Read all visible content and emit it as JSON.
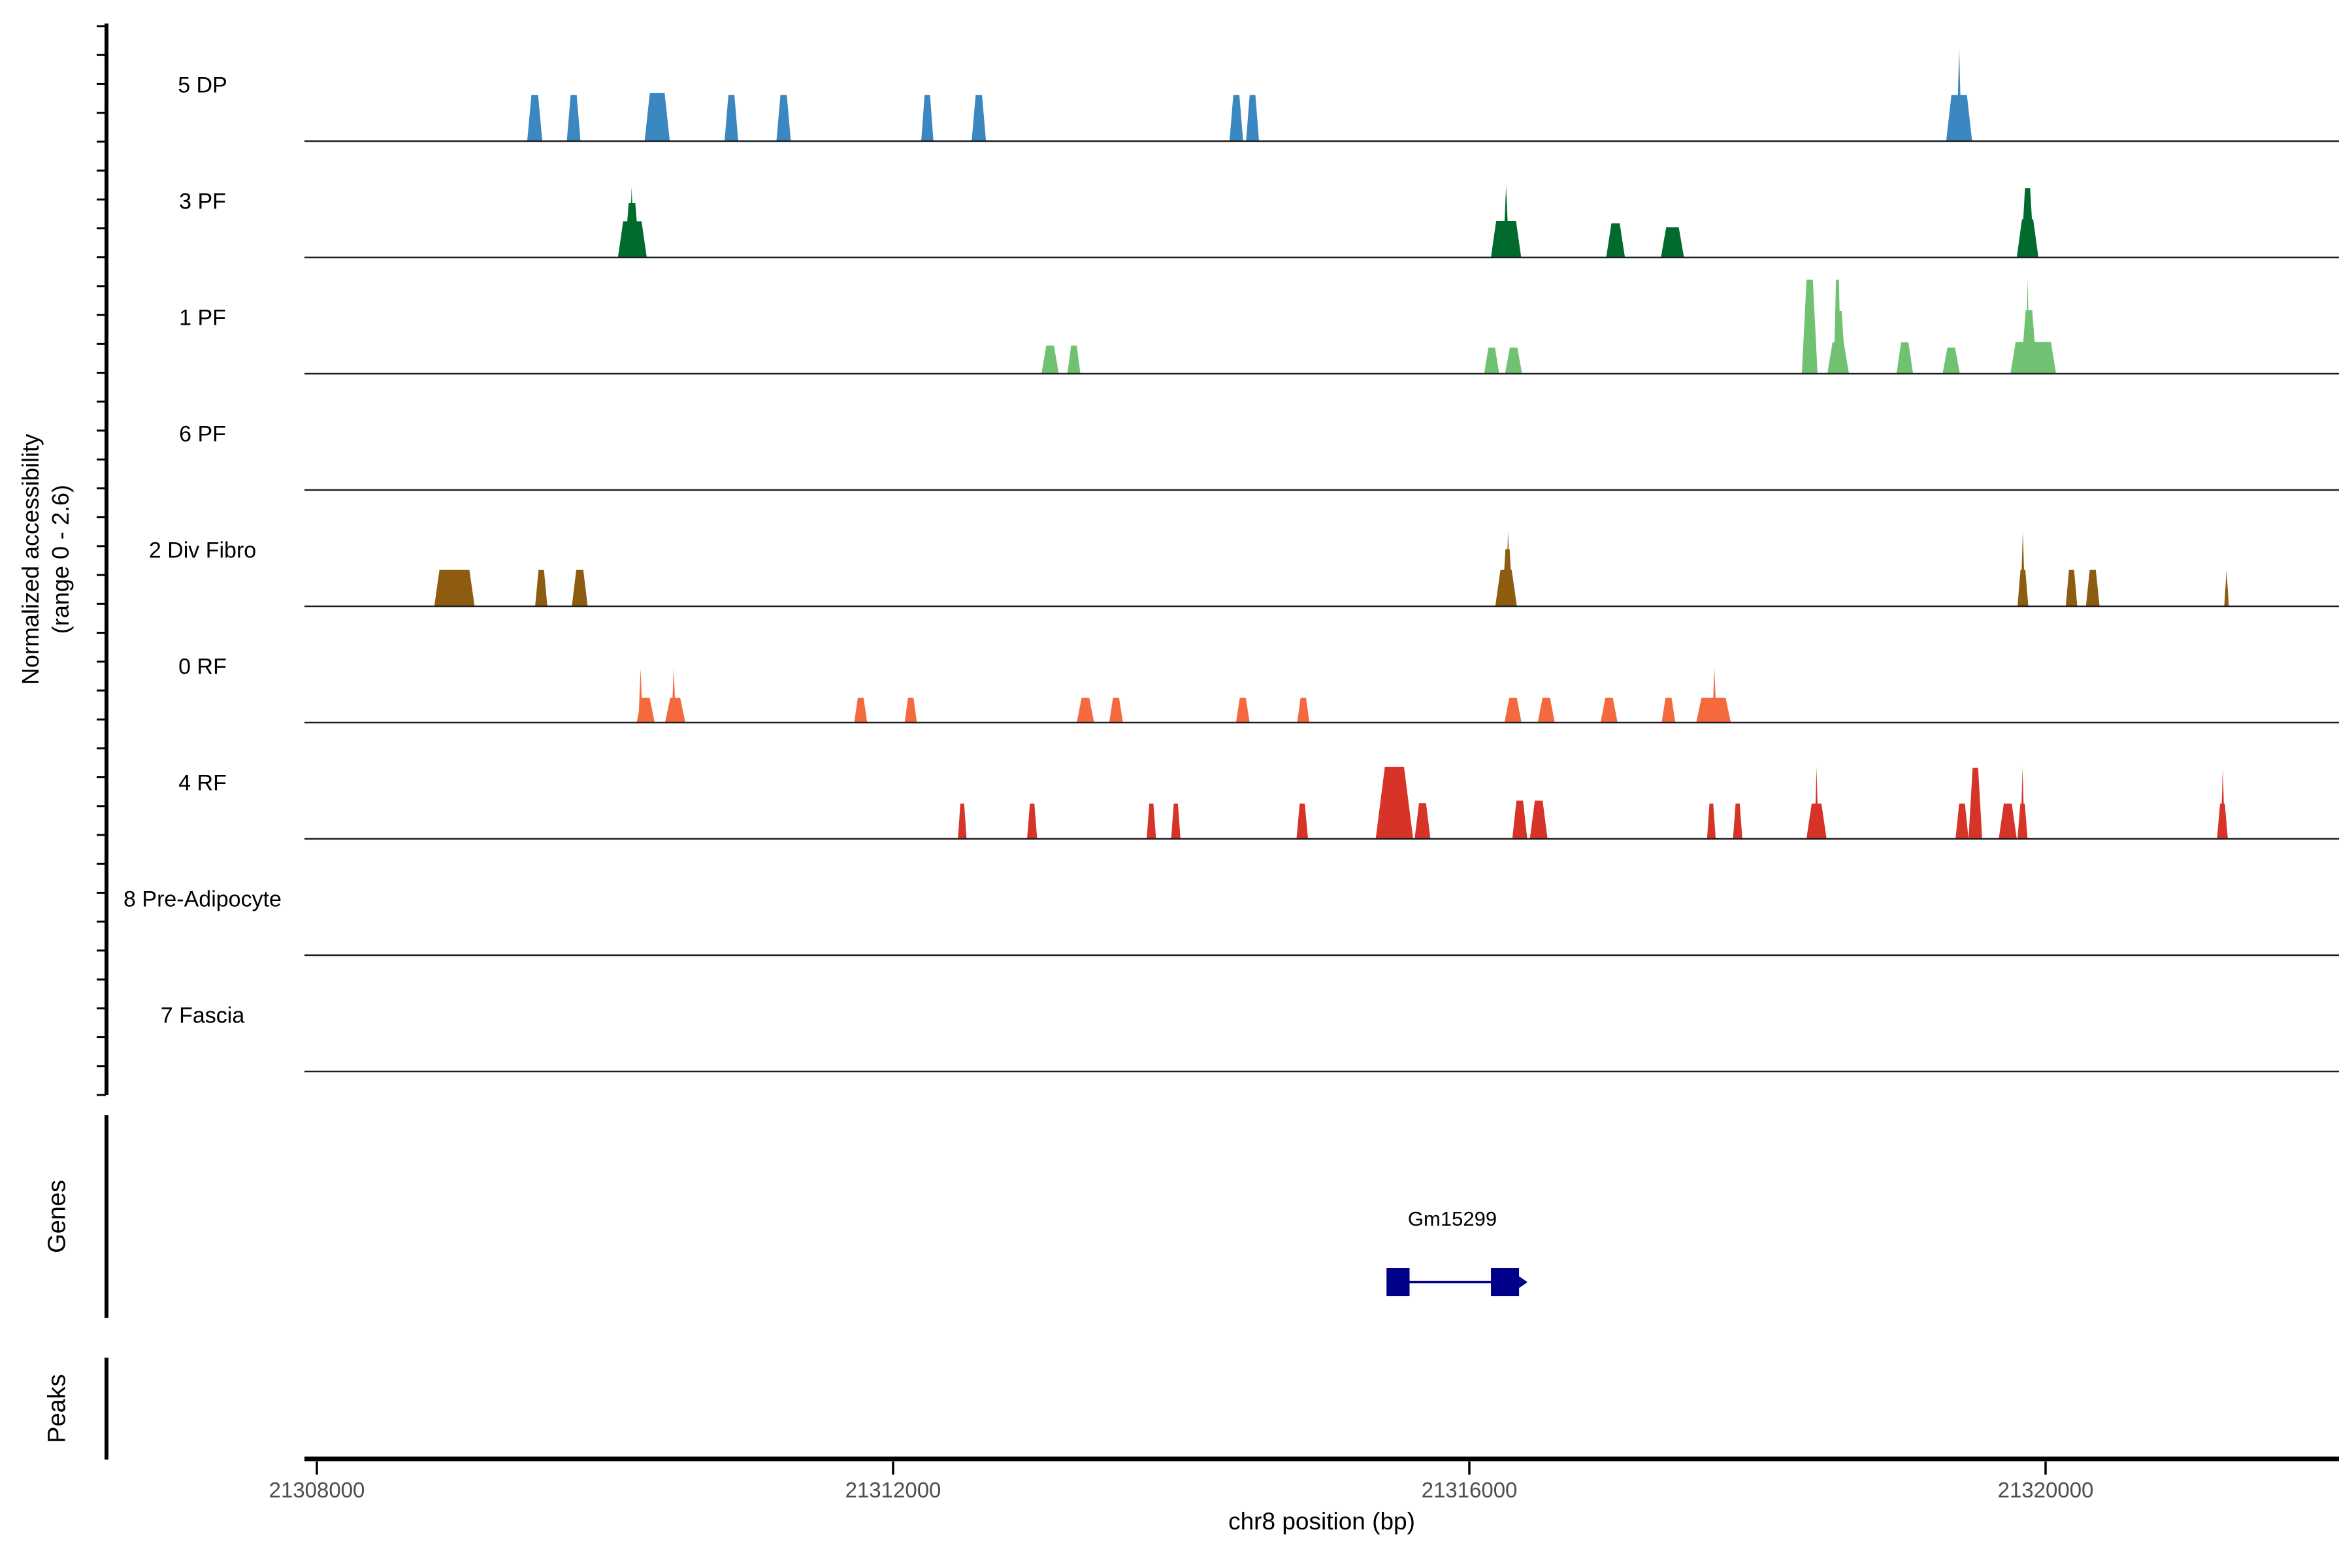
{
  "figure": {
    "background": "#ffffff",
    "baseline_color": "#1f1f1f",
    "axis_color": "#000000",
    "tick_label_color": "#4d4d4d"
  },
  "chart_data": {
    "type": "area",
    "description": "Normalized chromatin accessibility coverage tracks by cluster over a chr8 region, with gene annotation and peaks sections",
    "x_axis": {
      "label": "chr8 position (bp)",
      "window_bp": [
        21307900,
        21322050
      ],
      "ticks": [
        {
          "bp": 21308000,
          "label": "21308000"
        },
        {
          "bp": 21312000,
          "label": "21312000"
        },
        {
          "bp": 21316000,
          "label": "21316000"
        },
        {
          "bp": 21320000,
          "label": "21320000"
        }
      ]
    },
    "y_axis": {
      "label": [
        "Normalized accessibility",
        "(range 0 - 2.6)"
      ],
      "range": [
        0,
        2.6
      ]
    },
    "peak_format": [
      "start_bp",
      "end_bp",
      "height_on_0_to_2.6_scale",
      "optional shape: tri=needle spike, default=tapered block"
    ],
    "tracks": [
      {
        "label": "5 DP",
        "color": "#3a87c2",
        "peaks": [
          [
            21309460,
            21309565,
            1.15
          ],
          [
            21309735,
            21309830,
            1.15
          ],
          [
            21310275,
            21310450,
            1.2
          ],
          [
            21310830,
            21310925,
            1.15
          ],
          [
            21311190,
            21311290,
            1.15
          ],
          [
            21312195,
            21312280,
            1.15
          ],
          [
            21312545,
            21312645,
            1.15
          ],
          [
            21314335,
            21314430,
            1.15
          ],
          [
            21314450,
            21314540,
            1.15
          ],
          [
            21319310,
            21319490,
            1.15
          ],
          [
            21319383,
            21319417,
            2.3,
            "tri"
          ]
        ]
      },
      {
        "label": "3 PF",
        "color": "#006b2c",
        "peaks": [
          [
            21310090,
            21310290,
            0.9
          ],
          [
            21310135,
            21310240,
            1.35
          ],
          [
            21310168,
            21310202,
            1.75,
            "tri"
          ],
          [
            21316150,
            21316360,
            0.91
          ],
          [
            21316233,
            21316277,
            1.77,
            "tri"
          ],
          [
            21316950,
            21317080,
            0.85
          ],
          [
            21317330,
            21317490,
            0.75
          ],
          [
            21319800,
            21319950,
            0.95
          ],
          [
            21319830,
            21319920,
            1.72
          ]
        ]
      },
      {
        "label": "1 PF",
        "color": "#70c172",
        "peaks": [
          [
            21313030,
            21313150,
            0.7
          ],
          [
            21313210,
            21313300,
            0.7
          ],
          [
            21316103,
            21316207,
            0.65
          ],
          [
            21316248,
            21316366,
            0.65
          ],
          [
            21318308,
            21318417,
            2.34
          ],
          [
            21318485,
            21318635,
            0.78
          ],
          [
            21318520,
            21318612,
            1.56
          ],
          [
            21318530,
            21318580,
            2.34
          ],
          [
            21318965,
            21319080,
            0.78
          ],
          [
            21319285,
            21319405,
            0.65
          ],
          [
            21319756,
            21320073,
            0.79
          ],
          [
            21319828,
            21319941,
            1.58
          ],
          [
            21319860,
            21319890,
            2.34,
            "tri"
          ]
        ]
      },
      {
        "label": "6 PF",
        "color": null,
        "peaks": []
      },
      {
        "label": "2 Div Fibro",
        "color": "#8d5c10",
        "peaks": [
          [
            21308815,
            21309095,
            0.91
          ],
          [
            21309515,
            21309600,
            0.91
          ],
          [
            21309770,
            21309880,
            0.91
          ],
          [
            21316180,
            21316330,
            0.91
          ],
          [
            21316228,
            21316302,
            1.42
          ],
          [
            21316252,
            21316285,
            1.87,
            "tri"
          ],
          [
            21319805,
            21319880,
            0.91
          ],
          [
            21319826,
            21319858,
            1.87,
            "tri"
          ],
          [
            21320140,
            21320220,
            0.91
          ],
          [
            21320280,
            21320375,
            0.91
          ],
          [
            21321240,
            21321272,
            0.9,
            "tri"
          ]
        ]
      },
      {
        "label": "0 RF",
        "color": "#f4693d",
        "peaks": [
          [
            21310220,
            21310345,
            0.62
          ],
          [
            21310232,
            21310262,
            1.35,
            "tri"
          ],
          [
            21310417,
            21310558,
            0.62
          ],
          [
            21310462,
            21310492,
            1.35,
            "tri"
          ],
          [
            21311730,
            21311820,
            0.62
          ],
          [
            21312080,
            21312165,
            0.62
          ],
          [
            21313275,
            21313395,
            0.62
          ],
          [
            21313500,
            21313595,
            0.62
          ],
          [
            21314380,
            21314475,
            0.62
          ],
          [
            21314805,
            21314890,
            0.62
          ],
          [
            21316244,
            21316362,
            0.62
          ],
          [
            21316475,
            21316593,
            0.62
          ],
          [
            21316911,
            21317029,
            0.62
          ],
          [
            21317335,
            21317430,
            0.62
          ],
          [
            21317575,
            21317815,
            0.62
          ],
          [
            21317686,
            21317716,
            1.35,
            "tri"
          ]
        ]
      },
      {
        "label": "4 RF",
        "color": "#d63428",
        "peaks": [
          [
            21312450,
            21312510,
            0.88
          ],
          [
            21312930,
            21313000,
            0.88
          ],
          [
            21313760,
            21313825,
            0.88
          ],
          [
            21313930,
            21313995,
            0.88
          ],
          [
            21314800,
            21314880,
            0.88
          ],
          [
            21315350,
            21315610,
            1.79
          ],
          [
            21315620,
            21315730,
            0.89
          ],
          [
            21316298,
            21316402,
            0.95
          ],
          [
            21316420,
            21316543,
            0.95
          ],
          [
            21317650,
            21317710,
            0.88
          ],
          [
            21317830,
            21317895,
            0.88
          ],
          [
            21318340,
            21318480,
            0.88
          ],
          [
            21318396,
            21318424,
            1.77,
            "tri"
          ],
          [
            21319375,
            21319465,
            0.88
          ],
          [
            21319465,
            21319560,
            1.77
          ],
          [
            21319675,
            21319800,
            0.88
          ],
          [
            21319805,
            21319875,
            0.88
          ],
          [
            21319826,
            21319854,
            1.77,
            "tri"
          ],
          [
            21321190,
            21321265,
            0.88
          ],
          [
            21321216,
            21321244,
            1.77,
            "tri"
          ]
        ]
      },
      {
        "label": "8 Pre-Adipocyte",
        "color": null,
        "peaks": []
      },
      {
        "label": "7 Fascia",
        "color": null,
        "peaks": []
      }
    ],
    "gene_track": {
      "section_label": "Genes",
      "genes": [
        {
          "name": "Gm15299",
          "color": "#00008b",
          "strand": "+",
          "exons_bp": [
            [
              21315425,
              21315585
            ],
            [
              21316150,
              21316345
            ]
          ],
          "span_bp": [
            21315425,
            21316345
          ]
        }
      ]
    },
    "peaks_track": {
      "section_label": "Peaks",
      "peaks": []
    }
  }
}
